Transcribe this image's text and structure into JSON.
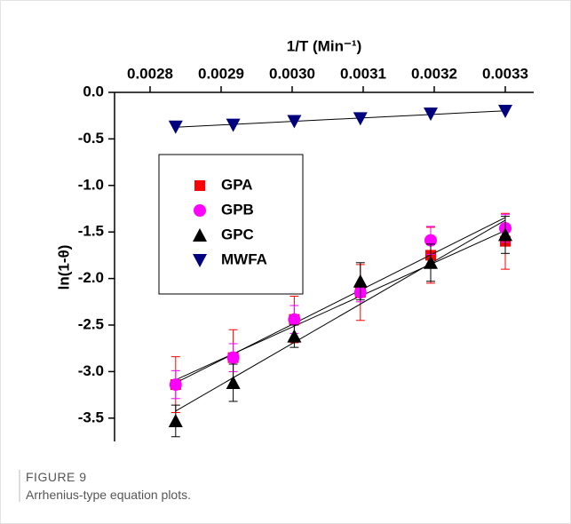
{
  "chart_data": {
    "type": "scatter",
    "xlabel": "1/T (Min⁻¹)",
    "ylabel": "ln(1-θ)",
    "x": [
      0.002836,
      0.002917,
      0.003003,
      0.003096,
      0.003195,
      0.0033
    ],
    "xlim": [
      0.00275,
      0.00334
    ],
    "xticks": [
      0.0028,
      0.0029,
      {
        "value": 0.003,
        "label": "0.0030"
      },
      0.0031,
      0.0032,
      0.0033
    ],
    "ylim": [
      -3.75,
      0.0
    ],
    "yticks": [
      {
        "value": 0,
        "label": "0.0"
      },
      -0.5,
      {
        "value": -1,
        "label": "-1.0"
      },
      -1.5,
      {
        "value": -2,
        "label": "-2.0"
      },
      -2.5,
      {
        "value": -3,
        "label": "-3.0"
      },
      -3.5
    ],
    "fit": true,
    "legend": "upper left",
    "series": [
      {
        "name": "GPA",
        "color": "#ff0000",
        "marker": "square",
        "values": [
          -3.14,
          -2.85,
          -2.44,
          -2.15,
          -1.75,
          -1.6
        ],
        "errors": [
          0.3,
          0.3,
          0.25,
          0.3,
          0.3,
          0.3
        ]
      },
      {
        "name": "GPB",
        "color": "#ff00ff",
        "marker": "circle",
        "values": [
          -3.14,
          -2.85,
          -2.44,
          -2.15,
          -1.59,
          -1.46
        ],
        "errors": [
          0.15,
          0.15,
          0.15,
          0.1,
          0.15,
          0.15
        ]
      },
      {
        "name": "GPC",
        "color": "#000000",
        "marker": "triangle-up",
        "values": [
          -3.53,
          -3.12,
          -2.62,
          -2.03,
          -1.83,
          -1.53
        ],
        "errors": [
          0.17,
          0.2,
          0.12,
          0.2,
          0.2,
          0.2
        ]
      },
      {
        "name": "MWFA",
        "color": "#00007f",
        "marker": "triangle-down",
        "values": [
          -0.37,
          -0.35,
          -0.31,
          -0.28,
          -0.23,
          -0.2
        ]
      }
    ]
  },
  "caption": {
    "label": "FIGURE 9",
    "text": "Arrhenius-type equation plots."
  }
}
